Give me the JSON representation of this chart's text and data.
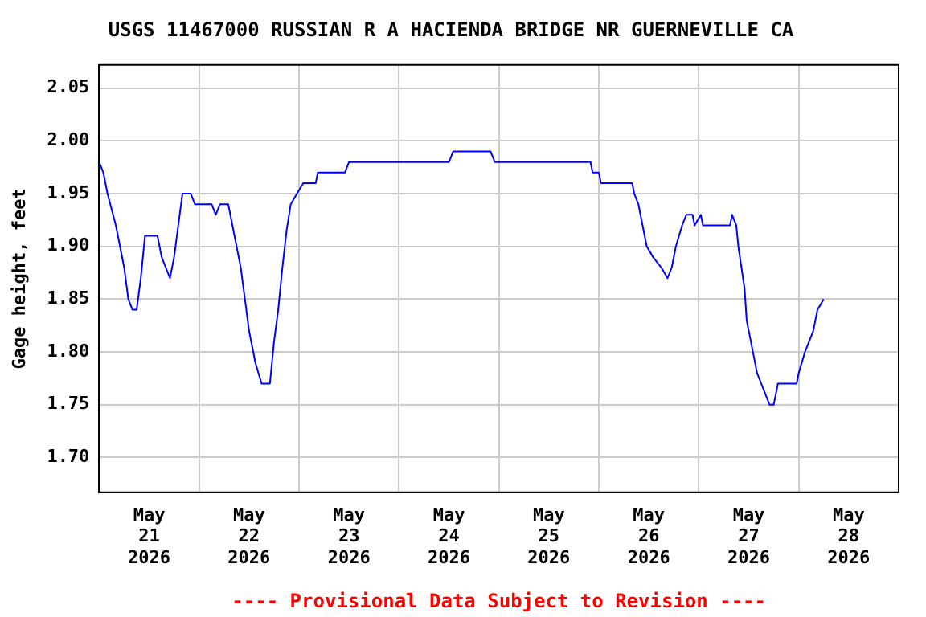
{
  "chart_data": {
    "type": "line",
    "title": "USGS 11467000 RUSSIAN R A HACIENDA BRIDGE NR GUERNEVILLE CA",
    "ylabel": "Gage height, feet",
    "annotations": [
      "---- Provisional Data Subject to Revision ----"
    ],
    "x": [
      "2026-05-21T00:00",
      "2026-05-21T01:00",
      "2026-05-21T02:00",
      "2026-05-21T04:00",
      "2026-05-21T05:00",
      "2026-05-21T06:00",
      "2026-05-21T07:00",
      "2026-05-21T08:00",
      "2026-05-21T09:00",
      "2026-05-21T10:00",
      "2026-05-21T11:00",
      "2026-05-21T14:00",
      "2026-05-21T15:00",
      "2026-05-21T16:00",
      "2026-05-21T17:00",
      "2026-05-21T18:00",
      "2026-05-21T19:00",
      "2026-05-21T20:00",
      "2026-05-21T22:00",
      "2026-05-21T23:00",
      "2026-05-22T03:00",
      "2026-05-22T04:00",
      "2026-05-22T05:00",
      "2026-05-22T07:00",
      "2026-05-22T08:00",
      "2026-05-22T10:00",
      "2026-05-22T11:00",
      "2026-05-22T12:00",
      "2026-05-22T13:30",
      "2026-05-22T15:00",
      "2026-05-22T17:00",
      "2026-05-22T18:00",
      "2026-05-22T19:00",
      "2026-05-22T20:00",
      "2026-05-22T21:00",
      "2026-05-22T22:00",
      "2026-05-22T23:30",
      "2026-05-23T01:00",
      "2026-05-23T04:00",
      "2026-05-23T04:30",
      "2026-05-23T11:00",
      "2026-05-23T12:00",
      "2026-05-24T12:00",
      "2026-05-24T13:00",
      "2026-05-24T22:00",
      "2026-05-24T23:00",
      "2026-05-25T22:00",
      "2026-05-25T22:30",
      "2026-05-26T00:00",
      "2026-05-26T00:30",
      "2026-05-26T08:00",
      "2026-05-26T08:30",
      "2026-05-26T09:30",
      "2026-05-26T10:30",
      "2026-05-26T11:30",
      "2026-05-26T13:00",
      "2026-05-26T15:00",
      "2026-05-26T16:30",
      "2026-05-26T17:30",
      "2026-05-26T18:30",
      "2026-05-26T20:00",
      "2026-05-26T21:00",
      "2026-05-26T22:30",
      "2026-05-26T23:00",
      "2026-05-27T00:30",
      "2026-05-27T01:00",
      "2026-05-27T07:30",
      "2026-05-27T08:00",
      "2026-05-27T09:00",
      "2026-05-27T09:30",
      "2026-05-27T11:00",
      "2026-05-27T11:30",
      "2026-05-27T13:00",
      "2026-05-27T14:00",
      "2026-05-27T15:00",
      "2026-05-27T16:00",
      "2026-05-27T17:00",
      "2026-05-27T18:00",
      "2026-05-27T19:00",
      "2026-05-27T21:00",
      "2026-05-27T23:30",
      "2026-05-28T00:00",
      "2026-05-28T01:30",
      "2026-05-28T03:30",
      "2026-05-28T04:30",
      "2026-05-28T06:00"
    ],
    "series": [
      {
        "color": "#0000ff",
        "values": [
          1.98,
          1.97,
          1.95,
          1.92,
          1.9,
          1.88,
          1.85,
          1.84,
          1.84,
          1.87,
          1.91,
          1.91,
          1.89,
          1.88,
          1.87,
          1.89,
          1.92,
          1.95,
          1.95,
          1.94,
          1.94,
          1.93,
          1.94,
          1.94,
          1.92,
          1.88,
          1.85,
          1.82,
          1.79,
          1.77,
          1.77,
          1.81,
          1.84,
          1.88,
          1.915,
          1.94,
          1.95,
          1.96,
          1.96,
          1.97,
          1.97,
          1.98,
          1.98,
          1.99,
          1.99,
          1.98,
          1.98,
          1.97,
          1.97,
          1.96,
          1.96,
          1.95,
          1.94,
          1.92,
          1.9,
          1.89,
          1.88,
          1.87,
          1.88,
          1.9,
          1.92,
          1.93,
          1.93,
          1.92,
          1.93,
          1.92,
          1.92,
          1.93,
          1.92,
          1.9,
          1.86,
          1.83,
          1.8,
          1.78,
          1.77,
          1.76,
          1.75,
          1.75,
          1.77,
          1.77,
          1.77,
          1.78,
          1.8,
          1.82,
          1.84,
          1.85
        ]
      }
    ],
    "xlim": [
      "2026-05-21T00:00",
      "2026-05-29T00:00"
    ],
    "xticks": [
      {
        "value": "2026-05-21T12:00",
        "label": "May\n21\n2026"
      },
      {
        "value": "2026-05-22T00:00",
        "label": null
      },
      {
        "value": "2026-05-22T12:00",
        "label": "May\n22\n2026"
      },
      {
        "value": "2026-05-23T00:00",
        "label": null
      },
      {
        "value": "2026-05-23T12:00",
        "label": "May\n23\n2026"
      },
      {
        "value": "2026-05-24T00:00",
        "label": null
      },
      {
        "value": "2026-05-24T12:00",
        "label": "May\n24\n2026"
      },
      {
        "value": "2026-05-25T00:00",
        "label": null
      },
      {
        "value": "2026-05-25T12:00",
        "label": "May\n25\n2026"
      },
      {
        "value": "2026-05-26T00:00",
        "label": null
      },
      {
        "value": "2026-05-26T12:00",
        "label": "May\n26\n2026"
      },
      {
        "value": "2026-05-27T00:00",
        "label": null
      },
      {
        "value": "2026-05-27T12:00",
        "label": "May\n27\n2026"
      },
      {
        "value": "2026-05-28T00:00",
        "label": null
      },
      {
        "value": "2026-05-28T12:00",
        "label": "May\n28\n2026"
      }
    ],
    "ylim": [
      1.667,
      2.072
    ],
    "yticks": [
      {
        "value": 1.7,
        "label": "1.70"
      },
      1.75,
      {
        "value": 1.8,
        "label": "1.80"
      },
      1.85,
      {
        "value": 1.9,
        "label": "1.90"
      },
      1.95,
      {
        "value": 2.0,
        "label": "2.00"
      },
      2.05
    ],
    "grid": true,
    "legend": false,
    "marker": "none",
    "line_style": "solid"
  }
}
